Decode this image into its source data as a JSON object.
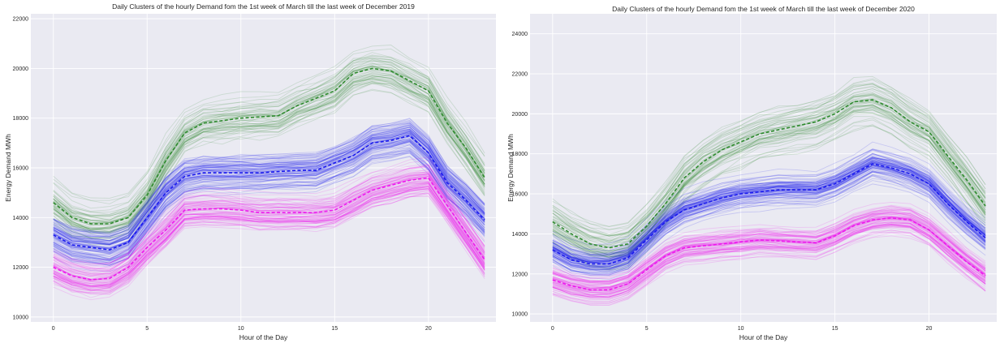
{
  "colors": {
    "background": "#eaeaf2",
    "cluster_high": "#2e8b2e",
    "cluster_mid": "#1a1aee",
    "cluster_low": "#ee1aee"
  },
  "chart_data": [
    {
      "type": "line",
      "title": "Daily Clusters of the hourly Demand fom the 1st week of March till the last week of December 2019",
      "xlabel": "Hour of the Day",
      "ylabel": "Energy Demand MWh",
      "xlim": [
        -1.2,
        23.6
      ],
      "ylim": [
        9800,
        22200
      ],
      "xticks": [
        0,
        5,
        10,
        15,
        20
      ],
      "yticks": [
        10000,
        12000,
        14000,
        16000,
        18000,
        20000,
        22000
      ],
      "grid": true,
      "legend": false,
      "x": [
        0,
        1,
        2,
        3,
        4,
        5,
        6,
        7,
        8,
        9,
        10,
        11,
        12,
        13,
        14,
        15,
        16,
        17,
        18,
        19,
        20,
        21,
        22,
        23
      ],
      "series": [
        {
          "color": "#2e8b2e",
          "dashed_centroid": true,
          "members_approx": 55,
          "spread": 650,
          "values": [
            14600,
            14000,
            13750,
            13750,
            14000,
            14900,
            16300,
            17400,
            17800,
            17900,
            18000,
            18050,
            18100,
            18500,
            18800,
            19100,
            19800,
            20000,
            19900,
            19500,
            19100,
            17800,
            16800,
            15600
          ]
        },
        {
          "color": "#1a1aee",
          "dashed_centroid": true,
          "members_approx": 90,
          "spread": 480,
          "values": [
            13300,
            12900,
            12800,
            12700,
            13000,
            14000,
            15000,
            15650,
            15800,
            15800,
            15800,
            15800,
            15850,
            15900,
            15900,
            16200,
            16500,
            17000,
            17100,
            17300,
            16600,
            15400,
            14700,
            13900
          ]
        },
        {
          "color": "#ee1aee",
          "dashed_centroid": true,
          "members_approx": 80,
          "spread": 520,
          "values": [
            12000,
            11650,
            11500,
            11550,
            12000,
            12800,
            13500,
            14300,
            14350,
            14350,
            14300,
            14200,
            14200,
            14200,
            14200,
            14300,
            14700,
            15100,
            15300,
            15500,
            15600,
            14500,
            13400,
            12300
          ]
        }
      ]
    },
    {
      "type": "line",
      "title": "Daily Clusters of the hourly Demand fom the 1st week of March till the last week of December 2020",
      "xlabel": "Hour of the Day",
      "ylabel": "Energy Demand MWh",
      "xlim": [
        -1.2,
        23.6
      ],
      "ylim": [
        9600,
        25000
      ],
      "xticks": [
        0,
        5,
        10,
        15,
        20
      ],
      "yticks": [
        10000,
        12000,
        14000,
        16000,
        18000,
        20000,
        22000,
        24000
      ],
      "grid": true,
      "legend": false,
      "x": [
        0,
        1,
        2,
        3,
        4,
        5,
        6,
        7,
        8,
        9,
        10,
        11,
        12,
        13,
        14,
        15,
        16,
        17,
        18,
        19,
        20,
        21,
        22,
        23
      ],
      "series": [
        {
          "color": "#2e8b2e",
          "dashed_centroid": true,
          "members_approx": 55,
          "spread": 900,
          "values": [
            14600,
            14000,
            13500,
            13300,
            13500,
            14400,
            15500,
            16800,
            17600,
            18200,
            18600,
            19000,
            19200,
            19400,
            19600,
            20000,
            20600,
            20700,
            20300,
            19600,
            19100,
            17900,
            16700,
            15400
          ]
        },
        {
          "color": "#1a1aee",
          "dashed_centroid": true,
          "members_approx": 90,
          "spread": 520,
          "values": [
            13200,
            12700,
            12500,
            12500,
            12800,
            13700,
            14600,
            15200,
            15500,
            15800,
            16000,
            16100,
            16200,
            16200,
            16200,
            16500,
            17000,
            17500,
            17300,
            17000,
            16500,
            15500,
            14600,
            13800
          ]
        },
        {
          "color": "#ee1aee",
          "dashed_centroid": true,
          "members_approx": 80,
          "spread": 520,
          "values": [
            11700,
            11400,
            11200,
            11200,
            11500,
            12200,
            12900,
            13300,
            13400,
            13500,
            13600,
            13700,
            13650,
            13600,
            13550,
            13900,
            14400,
            14700,
            14800,
            14700,
            14200,
            13400,
            12600,
            11900
          ]
        }
      ]
    }
  ]
}
